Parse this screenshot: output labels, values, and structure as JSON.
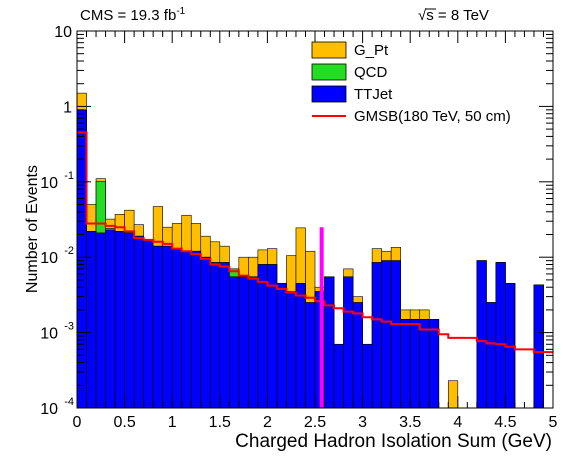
{
  "chart_data": {
    "type": "bar",
    "stacked": true,
    "ylog": true,
    "xlabel": "Charged Hadron Isolation Sum (GeV)",
    "ylabel": "Number of Events",
    "xlim": [
      0,
      5
    ],
    "ylim": [
      0.0001,
      10
    ],
    "annotations": {
      "lumi": "CMS = 19.3 fb",
      "lumi_sup": "-1",
      "energy_root": "√s",
      "energy_rest": " = 8 TeV"
    },
    "bin_width": 0.1,
    "x_ticks": [
      {
        "value": 0,
        "label": "0"
      },
      {
        "value": 0.5,
        "label": "0.5"
      },
      {
        "value": 1,
        "label": "1"
      },
      {
        "value": 1.5,
        "label": "1.5"
      },
      {
        "value": 2,
        "label": "2"
      },
      {
        "value": 2.5,
        "label": "2.5"
      },
      {
        "value": 3,
        "label": "3"
      },
      {
        "value": 3.5,
        "label": "3.5"
      },
      {
        "value": 4,
        "label": "4"
      },
      {
        "value": 4.5,
        "label": "4.5"
      },
      {
        "value": 5,
        "label": "5"
      }
    ],
    "y_ticks": [
      {
        "value": 10,
        "label": "10",
        "sup": ""
      },
      {
        "value": 1,
        "label": "1",
        "sup": ""
      },
      {
        "value": 0.1,
        "label": "10",
        "sup": "-1"
      },
      {
        "value": 0.01,
        "label": "10",
        "sup": "-2"
      },
      {
        "value": 0.001,
        "label": "10",
        "sup": "-3"
      },
      {
        "value": 0.0001,
        "label": "10",
        "sup": "-4"
      }
    ],
    "series": [
      {
        "name": "TTJet",
        "color": "#0000ff",
        "kind": "stack",
        "values": [
          0.9,
          0.022,
          0.021,
          0.023,
          0.022,
          0.021,
          0.019,
          0.017,
          0.014,
          0.014,
          0.013,
          0.012,
          0.012,
          0.01,
          0.0085,
          0.0085,
          0.0055,
          0.0055,
          0.0055,
          0.008,
          0.008,
          0.0045,
          0.0035,
          0.0045,
          0.0025,
          0.0035,
          0.0055,
          0.0007,
          0.0055,
          0.0025,
          0.0007,
          0.0085,
          0.009,
          0.009,
          0.0015,
          0.0015,
          0.0015,
          0.0015,
          0.0001,
          0.0001,
          0.0001,
          0.0001,
          0.009,
          0.0025,
          0.0085,
          0.0045,
          0.0001,
          0.0001,
          0.0043,
          0.0001
        ]
      },
      {
        "name": "QCD",
        "color": "#22dd22",
        "kind": "stack",
        "values": [
          0,
          0,
          0.08,
          0.001,
          0,
          0,
          0,
          0,
          0,
          0,
          0,
          0,
          0,
          0,
          0,
          0,
          0.0015,
          0,
          0,
          0,
          0,
          0,
          0,
          0,
          0,
          0,
          0,
          0,
          0,
          0,
          0,
          0,
          0,
          0,
          0,
          0,
          0,
          0,
          0,
          0,
          0,
          0,
          0,
          0,
          0,
          0,
          0,
          0,
          0,
          0
        ]
      },
      {
        "name": "G_Pt",
        "color": "#ffbf00",
        "kind": "stack",
        "values": [
          0.6,
          0.028,
          0.009,
          0.008,
          0.015,
          0.021,
          0.008,
          0.0,
          0.033,
          0.011,
          0.015,
          0.024,
          0.016,
          0.009,
          0.0075,
          0.0055,
          0.0,
          0.0045,
          0.0045,
          0.0045,
          0.005,
          0.0,
          0.007,
          0.02,
          0.0095,
          0.0005,
          0.0,
          0.0,
          0.0015,
          0.0005,
          0.0,
          0.0045,
          0.003,
          0.0045,
          0.0005,
          0.0005,
          0.0005,
          0.0,
          0.0,
          0.00013,
          0.0,
          0.0,
          0.0,
          0.0,
          0.0,
          0.0,
          0.0,
          0.0,
          0.0,
          0.0
        ]
      },
      {
        "name": "GMSB(180 TeV, 50 cm)",
        "color": "#ff0000",
        "kind": "line",
        "values": [
          0.45,
          0.028,
          0.028,
          0.026,
          0.025,
          0.022,
          0.018,
          0.017,
          0.016,
          0.015,
          0.013,
          0.012,
          0.011,
          0.0095,
          0.008,
          0.0075,
          0.0065,
          0.0057,
          0.0052,
          0.0047,
          0.0042,
          0.0038,
          0.0034,
          0.0031,
          0.0029,
          0.0026,
          0.0023,
          0.0021,
          0.0019,
          0.0018,
          0.0016,
          0.0015,
          0.0014,
          0.0013,
          0.0013,
          0.0013,
          0.0011,
          0.0011,
          0.00095,
          0.00085,
          0.00085,
          0.00085,
          0.00077,
          0.00072,
          0.0007,
          0.00065,
          0.0006,
          0.0006,
          0.00055,
          0.00055
        ]
      }
    ],
    "cut_line": {
      "x": 2.57,
      "color": "#ff00ff"
    },
    "legend": {
      "position": "top-right",
      "entries": [
        {
          "label": "G_Pt",
          "color": "#ffbf00",
          "kind": "box"
        },
        {
          "label": "QCD",
          "color": "#22dd22",
          "kind": "box"
        },
        {
          "label": "TTJet",
          "color": "#0000ff",
          "kind": "box"
        },
        {
          "label": "GMSB(180 TeV, 50 cm)",
          "color": "#ff0000",
          "kind": "line"
        }
      ]
    }
  }
}
